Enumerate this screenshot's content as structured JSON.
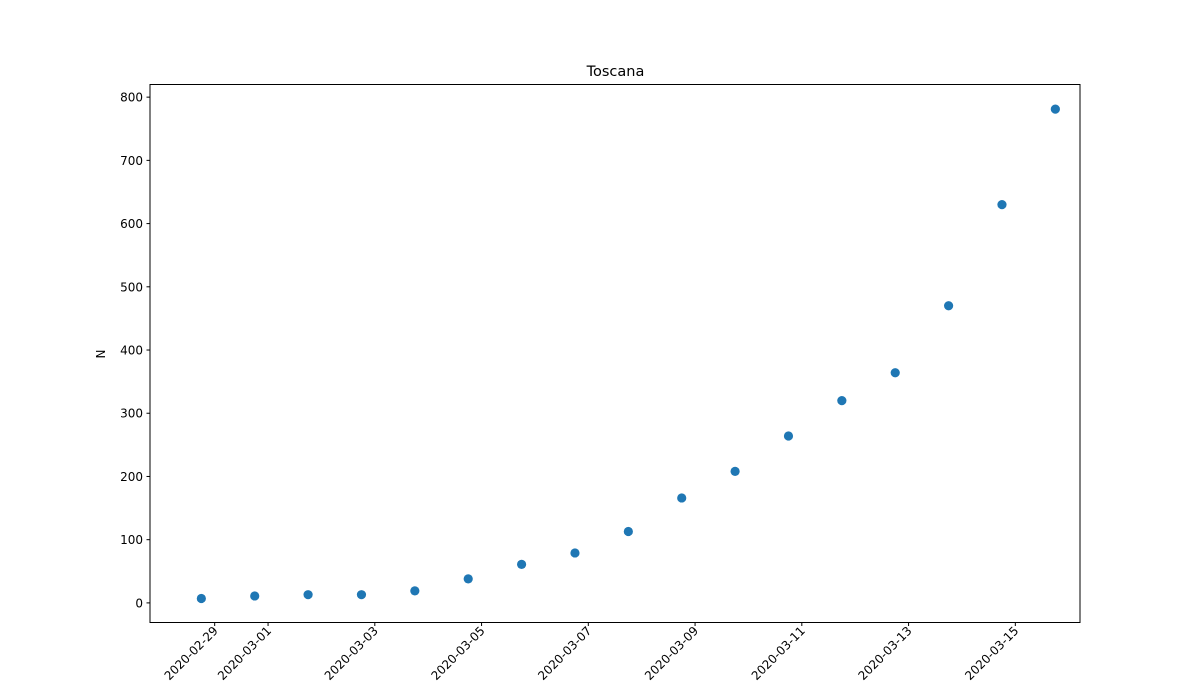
{
  "chart_data": {
    "type": "scatter",
    "title": "Toscana",
    "xlabel": "",
    "ylabel": "N",
    "x": [
      "2020-02-28",
      "2020-02-29",
      "2020-03-01",
      "2020-03-02",
      "2020-03-03",
      "2020-03-04",
      "2020-03-05",
      "2020-03-06",
      "2020-03-07",
      "2020-03-08",
      "2020-03-09",
      "2020-03-10",
      "2020-03-11",
      "2020-03-12",
      "2020-03-13",
      "2020-03-14",
      "2020-03-15"
    ],
    "y": [
      7,
      11,
      13,
      13,
      19,
      38,
      61,
      79,
      113,
      166,
      208,
      264,
      320,
      364,
      470,
      630,
      781
    ],
    "xticks": [
      "2020-02-29",
      "2020-03-01",
      "2020-03-03",
      "2020-03-05",
      "2020-03-07",
      "2020-03-09",
      "2020-03-11",
      "2020-03-13",
      "2020-03-15"
    ],
    "yticks": [
      0,
      100,
      200,
      300,
      400,
      500,
      600,
      700,
      800
    ],
    "xlim": [
      "2020-02-27T18:55",
      "2020-03-16T05:05"
    ],
    "ylim": [
      -31,
      820
    ],
    "grid": false,
    "marker_color": "#1f77b4"
  }
}
